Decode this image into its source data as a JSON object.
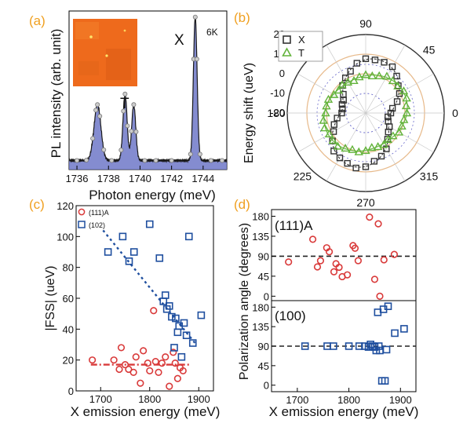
{
  "colors": {
    "panel_letter": "#f0a020",
    "inset_bg": "#ee6a1c",
    "spectrum_fill": "#6f78c8",
    "spectrum_line": "#1a1a1a",
    "x_series": "#333333",
    "t_series": "#62b33a",
    "red_series": "#d93a3a",
    "blue_series": "#1f4f9f",
    "polar_ring": "#e7b98a",
    "polar_inner": "#6a6acb"
  },
  "panel_labels": [
    "(a)",
    "(b)",
    "(c)",
    "(d)"
  ],
  "chart_data": [
    {
      "id": "a",
      "type": "line",
      "fill": true,
      "xlabel": "Photon energy (meV)",
      "ylabel": "PL intensity (arb. unit)",
      "xlim": [
        1735.5,
        1745.5
      ],
      "ylim": [
        0,
        1.05
      ],
      "xticks": [
        1736,
        1738,
        1740,
        1742,
        1744
      ],
      "xtick_labels": [
        "1736",
        "1738",
        "1740",
        "1742",
        "1744"
      ],
      "annotations": [
        "X",
        "T",
        "6K"
      ],
      "inset": "sample image",
      "peaks": [
        {
          "x": 1737.3,
          "height": 0.37,
          "width": 0.22
        },
        {
          "x": 1739.05,
          "height": 0.44,
          "width": 0.13
        },
        {
          "x": 1739.6,
          "height": 0.37,
          "width": 0.13
        },
        {
          "x": 1743.5,
          "height": 0.95,
          "width": 0.12
        }
      ],
      "baseline": 0.06,
      "markers_x": [
        1736.0,
        1736.6,
        1737.0,
        1737.2,
        1737.3,
        1737.45,
        1737.7,
        1738.2,
        1738.8,
        1738.95,
        1739.05,
        1739.2,
        1739.45,
        1739.6,
        1739.75,
        1740.3,
        1741.0,
        1742.0,
        1743.2,
        1743.4,
        1743.5,
        1743.6,
        1743.8,
        1744.5,
        1745.2
      ]
    },
    {
      "id": "b",
      "type": "scatter",
      "projection": "polar",
      "ylabel": "Energy shift (ueV)",
      "r_range": [
        -20,
        20
      ],
      "r_tick_labels": [
        "20",
        "10",
        "0",
        "-10",
        "-20"
      ],
      "angle_ticks": [
        0,
        45,
        90,
        180,
        225,
        270,
        315
      ],
      "angle_tick_labels": [
        "0",
        "45",
        "90",
        "180",
        "225",
        "270",
        "315"
      ],
      "legend_position": "top-left",
      "series": [
        {
          "name": "X",
          "marker": "square",
          "offset": 0,
          "amplitude": 8,
          "phase": 77
        },
        {
          "name": "T",
          "marker": "triangle",
          "offset": 0,
          "amplitude": 2,
          "phase": 30
        }
      ]
    },
    {
      "id": "c",
      "type": "scatter",
      "xlabel": "X emission energy (meV)",
      "ylabel": "|FSS| (ueV)",
      "xlim": [
        1650,
        1930
      ],
      "ylim": [
        0,
        120
      ],
      "xticks": [
        1700,
        1800,
        1900
      ],
      "xtick_labels": [
        "1700",
        "1800",
        "1900"
      ],
      "yticks": [
        0,
        20,
        40,
        60,
        80,
        100,
        120
      ],
      "ytick_labels": [
        "0",
        "20",
        "40",
        "60",
        "80",
        "100",
        "120"
      ],
      "legend_position": "top-left",
      "series": [
        {
          "name": "(111)A",
          "marker": "circle",
          "x": [
            1683,
            1727,
            1738,
            1742,
            1750,
            1757,
            1767,
            1772,
            1781,
            1787,
            1796,
            1800,
            1808,
            1812,
            1818,
            1825,
            1832,
            1840,
            1848,
            1852,
            1857,
            1862,
            1868
          ],
          "y": [
            20,
            20,
            14,
            28,
            17,
            14,
            12,
            22,
            5,
            26,
            18,
            13,
            52,
            19,
            12,
            18,
            22,
            3,
            25,
            18,
            8,
            15,
            13
          ]
        },
        {
          "name": "(102)",
          "marker": "square",
          "x": [
            1715,
            1745,
            1758,
            1768,
            1800,
            1820,
            1828,
            1832,
            1835,
            1840,
            1845,
            1850,
            1853,
            1857,
            1860,
            1865,
            1870,
            1875,
            1880,
            1888,
            1905
          ],
          "y": [
            90,
            100,
            84,
            90,
            108,
            86,
            58,
            62,
            53,
            55,
            48,
            28,
            47,
            38,
            42,
            22,
            44,
            36,
            100,
            31,
            49
          ]
        }
      ],
      "trend_lines": [
        {
          "series": "(102)",
          "x": [
            1705,
            1895
          ],
          "y": [
            104,
            30
          ]
        },
        {
          "series": "(111)A",
          "x": [
            1680,
            1880
          ],
          "y": [
            17,
            17
          ]
        }
      ]
    },
    {
      "id": "d_top",
      "type": "scatter",
      "annotation": "(111)A",
      "xlabel": "X emission energy (meV)",
      "ylabel": "Polarization angle (degrees)",
      "xlim": [
        1650,
        1930
      ],
      "ylim": [
        -10,
        195
      ],
      "yticks": [
        0,
        45,
        90,
        135,
        180
      ],
      "ytick_labels": [
        "0",
        "45",
        "90",
        "135",
        "180"
      ],
      "reference_line": 90,
      "series": [
        {
          "name": "(111)A",
          "marker": "circle",
          "x": [
            1683,
            1730,
            1739,
            1745,
            1757,
            1762,
            1771,
            1775,
            1781,
            1787,
            1797,
            1808,
            1812,
            1818,
            1840,
            1850,
            1857,
            1860,
            1868,
            1888
          ],
          "y": [
            77,
            128,
            66,
            80,
            109,
            100,
            55,
            73,
            65,
            44,
            48,
            114,
            108,
            80,
            178,
            38,
            163,
            0,
            82,
            94
          ]
        }
      ]
    },
    {
      "id": "d_bottom",
      "type": "scatter",
      "annotation": "(100)",
      "xlabel": "X emission energy (meV)",
      "ylabel": "Polarization angle (degrees)",
      "xlim": [
        1650,
        1930
      ],
      "ylim": [
        -15,
        195
      ],
      "xticks": [
        1700,
        1800,
        1900
      ],
      "xtick_labels": [
        "1700",
        "1800",
        "1900"
      ],
      "yticks": [
        0,
        45,
        90,
        135,
        180
      ],
      "ytick_labels": [
        "0",
        "45",
        "90",
        "135",
        "180"
      ],
      "reference_line": 90,
      "series": [
        {
          "name": "(100)",
          "marker": "square",
          "x": [
            1715,
            1758,
            1770,
            1800,
            1820,
            1831,
            1838,
            1842,
            1846,
            1850,
            1853,
            1856,
            1858,
            1860,
            1864,
            1867,
            1870,
            1873,
            1876,
            1889,
            1907
          ],
          "y": [
            90,
            90,
            90,
            90,
            90,
            90,
            88,
            94,
            90,
            88,
            80,
            168,
            90,
            80,
            10,
            175,
            10,
            82,
            182,
            120,
            130
          ]
        }
      ]
    }
  ]
}
